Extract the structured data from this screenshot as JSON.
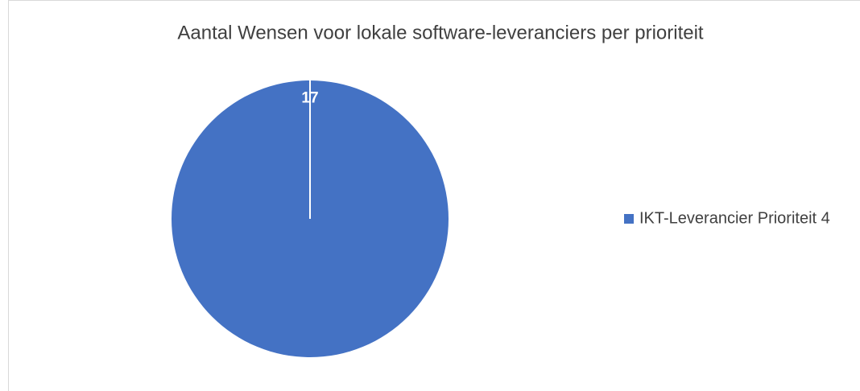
{
  "chart_data": {
    "type": "pie",
    "title": "Aantal Wensen voor lokale software-leveranciers per prioriteit",
    "categories": [
      "IKT-Leverancier Prioriteit 4"
    ],
    "values": [
      17
    ],
    "colors": [
      "#4472c4"
    ],
    "legend": "right"
  }
}
